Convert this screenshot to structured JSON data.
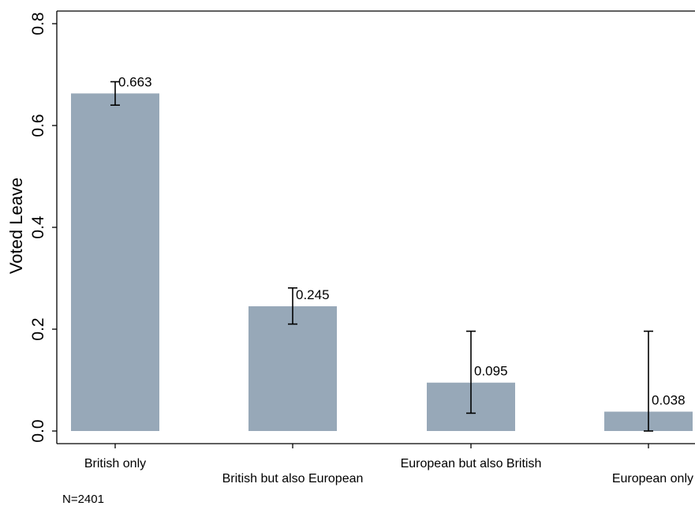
{
  "chart_data": {
    "type": "bar",
    "ylabel": "Voted Leave",
    "xlabel": "",
    "ylim": [
      0,
      0.8
    ],
    "yticks": [
      "0.0",
      "0.2",
      "0.4",
      "0.6",
      "0.8"
    ],
    "grid": false,
    "categories": [
      "British only",
      "British but also European",
      "European but also British",
      "European only"
    ],
    "values": [
      0.663,
      0.245,
      0.095,
      0.038
    ],
    "value_labels": [
      "0.663",
      "0.245",
      "0.095",
      "0.038"
    ],
    "ci_lower": [
      0.64,
      0.21,
      0.035,
      0.0
    ],
    "ci_upper": [
      0.686,
      0.281,
      0.196,
      0.196
    ],
    "bar_color": "#97a8b8"
  },
  "note": "N=2401"
}
